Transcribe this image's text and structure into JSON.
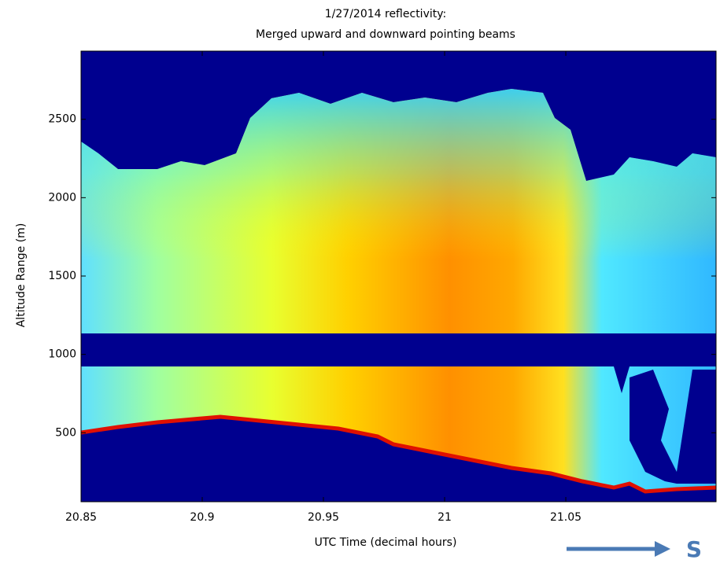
{
  "chart_data": {
    "type": "heatmap",
    "title": "1/27/2014 reflectivity:",
    "subtitle": "Merged upward and downward pointing beams",
    "xlabel": "UTC Time (decimal hours)",
    "ylabel": "Altitude Range (m)",
    "xlim": [
      20.85,
      21.112
    ],
    "xticks": [
      20.85,
      20.9,
      20.95,
      21,
      21.05
    ],
    "ylim": [
      60,
      2935
    ],
    "yticks": [
      500,
      1000,
      1500,
      2000,
      2500
    ],
    "colormap": "jet",
    "annotation": "S"
  }
}
